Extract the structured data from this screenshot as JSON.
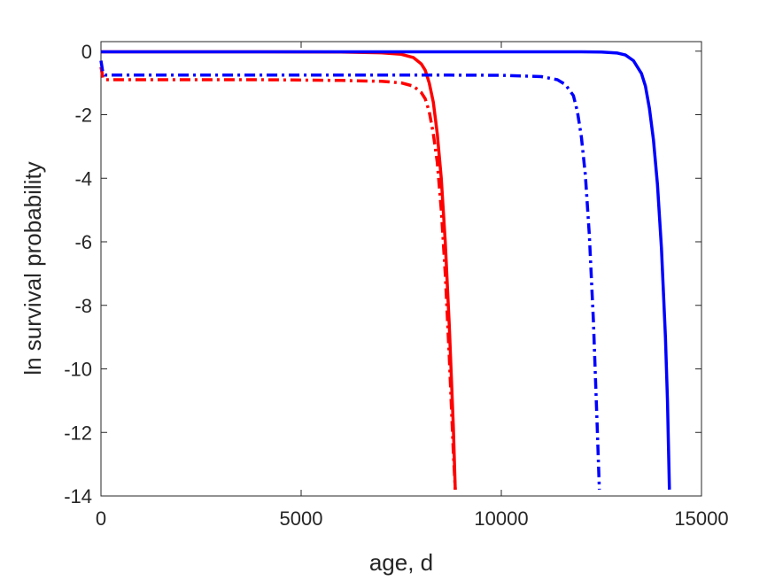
{
  "chart_data": {
    "type": "line",
    "xlabel": "age, d",
    "ylabel": "ln survival probability",
    "xlim": [
      0,
      15000
    ],
    "ylim": [
      -14,
      0.3
    ],
    "xticks": [
      0,
      5000,
      10000,
      15000
    ],
    "yticks": [
      0,
      -2,
      -4,
      -6,
      -8,
      -10,
      -12,
      -14
    ],
    "xtick_labels": [
      "0",
      "5000",
      "10000",
      "15000"
    ],
    "ytick_labels": [
      "0",
      "-2",
      "-4",
      "-6",
      "-8",
      "-10",
      "-12",
      "-14"
    ],
    "grid": false,
    "legend": "none",
    "series": [
      {
        "color": "#ff0000",
        "style": "solid",
        "x": [
          0,
          2000,
          4000,
          6000,
          7000,
          7500,
          7800,
          8000,
          8100,
          8200,
          8300,
          8400,
          8500,
          8600,
          8700,
          8800,
          8850
        ],
        "y": [
          -0.02,
          -0.02,
          -0.02,
          -0.03,
          -0.05,
          -0.1,
          -0.2,
          -0.4,
          -0.6,
          -1.0,
          -1.6,
          -2.6,
          -4.0,
          -6.0,
          -8.6,
          -11.8,
          -13.8
        ]
      },
      {
        "color": "#ff0000",
        "style": "dashdot",
        "x": [
          0,
          50,
          100,
          2000,
          4000,
          6000,
          7000,
          7500,
          7800,
          8000,
          8100,
          8200,
          8300,
          8400,
          8500,
          8600,
          8700,
          8800,
          8850
        ],
        "y": [
          -0.5,
          -0.85,
          -0.9,
          -0.9,
          -0.9,
          -0.92,
          -0.95,
          -1.0,
          -1.1,
          -1.3,
          -1.5,
          -1.9,
          -2.6,
          -3.5,
          -5.0,
          -7.0,
          -9.6,
          -12.6,
          -13.8
        ]
      },
      {
        "color": "#0000ff",
        "style": "solid",
        "x": [
          0,
          4000,
          8000,
          11000,
          12000,
          12500,
          12900,
          13100,
          13300,
          13500,
          13600,
          13700,
          13800,
          13900,
          14000,
          14100,
          14150,
          14200
        ],
        "y": [
          -0.02,
          -0.02,
          -0.02,
          -0.02,
          -0.02,
          -0.03,
          -0.06,
          -0.12,
          -0.3,
          -0.7,
          -1.1,
          -1.8,
          -2.8,
          -4.2,
          -6.2,
          -9.0,
          -11.0,
          -13.8
        ]
      },
      {
        "color": "#0000ff",
        "style": "dashdot",
        "x": [
          0,
          50,
          100,
          4000,
          8000,
          10000,
          11000,
          11400,
          11600,
          11800,
          11900,
          12000,
          12100,
          12200,
          12300,
          12400,
          12450
        ],
        "y": [
          -0.3,
          -0.7,
          -0.75,
          -0.75,
          -0.75,
          -0.76,
          -0.8,
          -0.9,
          -1.05,
          -1.4,
          -1.9,
          -2.7,
          -3.9,
          -5.8,
          -8.5,
          -12.0,
          -13.8
        ]
      }
    ]
  }
}
